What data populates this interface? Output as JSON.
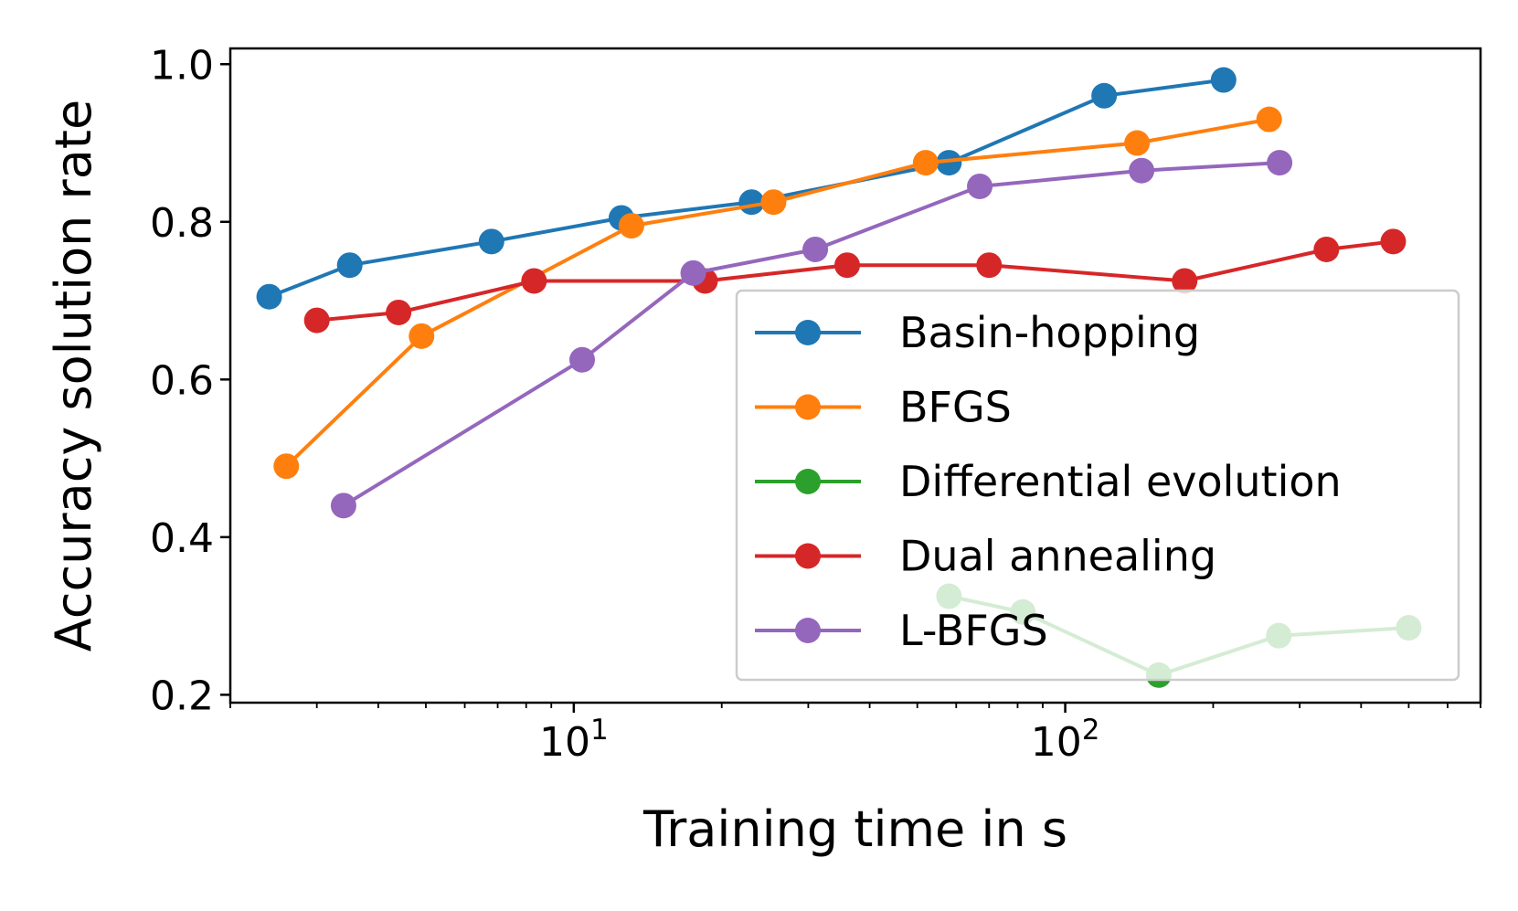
{
  "chart_data": {
    "type": "line",
    "title": "",
    "xlabel": "Training time in s",
    "ylabel": "Accuracy solution rate",
    "xscale": "log",
    "xlim": [
      2.0,
      700
    ],
    "ylim": [
      0.19,
      1.02
    ],
    "yticks": [
      {
        "value": 0.2,
        "label": "0.2"
      },
      {
        "value": 0.4,
        "label": "0.4"
      },
      {
        "value": 0.6,
        "label": "0.6"
      },
      {
        "value": 0.8,
        "label": "0.8"
      },
      {
        "value": 1.0,
        "label": "1.0"
      }
    ],
    "xticks": [
      {
        "value": 10,
        "base": "10",
        "exp": "1"
      },
      {
        "value": 100,
        "base": "10",
        "exp": "2"
      }
    ],
    "legend_position": "lower-right",
    "series": [
      {
        "name": "Basin-hopping",
        "color": "#1f77b4",
        "x": [
          2.4,
          3.5,
          6.8,
          12.5,
          23.0,
          58.0,
          120.0,
          210.0
        ],
        "y": [
          0.705,
          0.745,
          0.775,
          0.805,
          0.825,
          0.875,
          0.96,
          0.98
        ]
      },
      {
        "name": "BFGS",
        "color": "#ff7f0e",
        "x": [
          2.6,
          4.9,
          13.1,
          25.5,
          52.0,
          140.0,
          260.0
        ],
        "y": [
          0.49,
          0.655,
          0.795,
          0.825,
          0.875,
          0.9,
          0.93
        ]
      },
      {
        "name": "Differential evolution",
        "color": "#2ca02c",
        "x": [
          58.0,
          82.0,
          155.0,
          272.0,
          500.0
        ],
        "y": [
          0.325,
          0.305,
          0.225,
          0.275,
          0.285
        ]
      },
      {
        "name": "Dual annealing",
        "color": "#d62728",
        "x": [
          3.0,
          4.4,
          8.3,
          18.5,
          36.0,
          70.0,
          175.0,
          340.0,
          465.0
        ],
        "y": [
          0.675,
          0.685,
          0.725,
          0.725,
          0.745,
          0.745,
          0.725,
          0.765,
          0.775
        ]
      },
      {
        "name": "L-BFGS",
        "color": "#9467bd",
        "x": [
          3.4,
          10.4,
          17.5,
          31.0,
          67.0,
          143.0,
          273.0
        ],
        "y": [
          0.44,
          0.625,
          0.735,
          0.765,
          0.845,
          0.865,
          0.875
        ]
      }
    ]
  }
}
